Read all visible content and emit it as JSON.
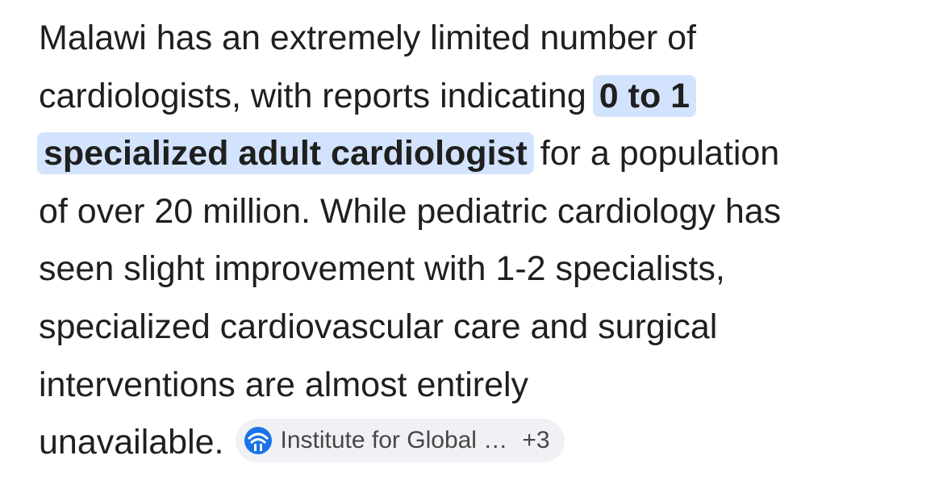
{
  "answer": {
    "lines": [
      "Malawi has an extremely limited number of",
      "cardiologists, with reports indicating",
      "for a population",
      "of over 20 million. While pediatric cardiology has",
      "seen slight improvement with 1-2 specialists,",
      "specialized cardiovascular care and surgical",
      "interventions are almost entirely",
      "unavailable."
    ],
    "highlight": [
      "0 to 1",
      "specialized adult cardiologist"
    ],
    "source": {
      "label": "Institute for Global …",
      "more": "+3"
    }
  }
}
